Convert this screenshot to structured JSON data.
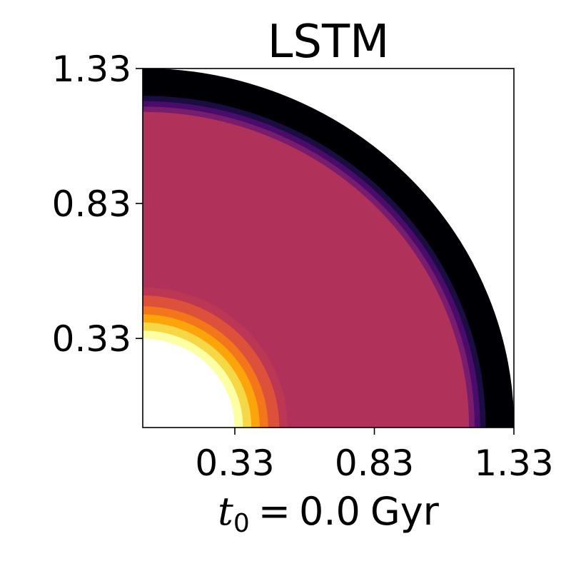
{
  "chart_data": {
    "type": "heatmap",
    "title": "LSTM",
    "xlabel": {
      "symbol": "t",
      "subscript": "0",
      "equals": "=",
      "value": "0.0",
      "unit": "Gyr"
    },
    "ylabel": "",
    "xlim": [
      0.0,
      1.33
    ],
    "ylim": [
      0.0,
      1.33
    ],
    "xticks": [
      0.33,
      0.83,
      1.33
    ],
    "yticks": [
      0.33,
      0.83,
      1.33
    ],
    "xtick_labels": [
      "0.33",
      "0.83",
      "1.33"
    ],
    "ytick_labels": [
      "0.33",
      "0.83",
      "1.33"
    ],
    "colormap": "inferno",
    "grid": false,
    "radial_field": {
      "inner_boundary_r": 0.33,
      "outer_boundary_r": 1.33,
      "bands": [
        {
          "r0": 0.33,
          "r1": 0.36,
          "color": "#fcffa4"
        },
        {
          "r0": 0.36,
          "r1": 0.39,
          "color": "#f6d746"
        },
        {
          "r0": 0.39,
          "r1": 0.42,
          "color": "#fca50a"
        },
        {
          "r0": 0.42,
          "r1": 0.45,
          "color": "#f3771a"
        },
        {
          "r0": 0.45,
          "r1": 0.49,
          "color": "#dd513a"
        },
        {
          "r0": 0.49,
          "r1": 0.52,
          "color": "#bc3754"
        },
        {
          "r0": 0.52,
          "r1": 1.17,
          "color": "#b0325a"
        },
        {
          "r0": 1.17,
          "r1": 1.19,
          "color": "#781c6d"
        },
        {
          "r0": 1.19,
          "r1": 1.21,
          "color": "#4a0c6b"
        },
        {
          "r0": 1.21,
          "r1": 1.23,
          "color": "#1b0c41"
        },
        {
          "r0": 1.23,
          "r1": 1.33,
          "color": "#000004"
        }
      ]
    }
  }
}
